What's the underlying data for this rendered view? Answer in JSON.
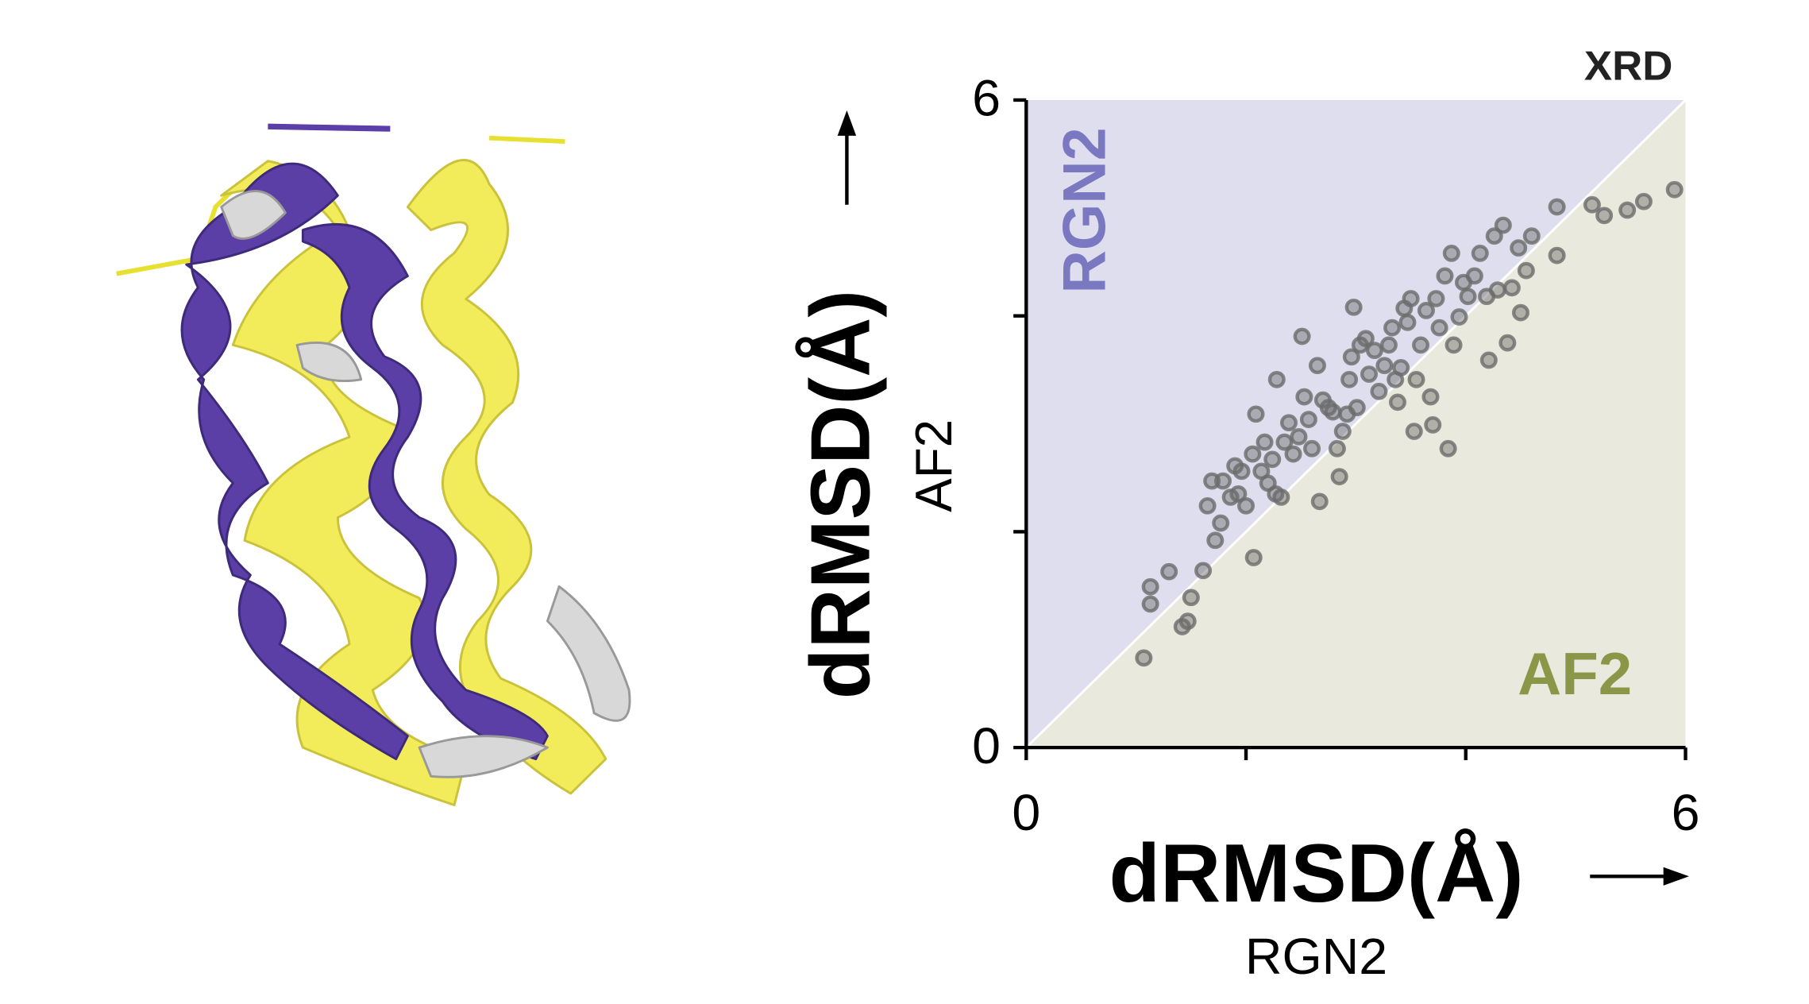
{
  "chart_data": {
    "type": "scatter",
    "title": "XRD",
    "xlabel": "dRMSD(Å)",
    "xlabel_sub": "RGN2",
    "ylabel": "dRMSD(Å)",
    "ylabel_sub": "AF2",
    "region_labels": {
      "upper": "RGN2",
      "lower": "AF2"
    },
    "xlim": [
      0,
      6
    ],
    "ylim": [
      0,
      6
    ],
    "xticks": [
      0,
      6
    ],
    "yticks": [
      0,
      6
    ],
    "xminor_ticks": [
      2,
      4
    ],
    "yminor_ticks": [
      2,
      4
    ],
    "color": "#6b6b6b",
    "x": [
      1.07,
      1.13,
      1.13,
      1.3,
      1.42,
      1.47,
      1.5,
      1.61,
      1.65,
      1.72,
      1.69,
      1.77,
      1.79,
      1.86,
      1.9,
      1.93,
      1.96,
      2.0,
      2.07,
      2.06,
      2.09,
      2.14,
      2.17,
      2.2,
      2.24,
      2.27,
      2.28,
      2.32,
      2.35,
      2.39,
      2.43,
      2.48,
      2.51,
      2.53,
      2.57,
      2.6,
      2.65,
      2.67,
      2.7,
      2.75,
      2.79,
      2.83,
      2.85,
      2.88,
      2.92,
      2.94,
      2.96,
      2.98,
      3.01,
      3.04,
      3.09,
      3.12,
      3.17,
      3.21,
      3.26,
      3.3,
      3.33,
      3.36,
      3.38,
      3.41,
      3.44,
      3.47,
      3.5,
      3.53,
      3.55,
      3.59,
      3.64,
      3.68,
      3.7,
      3.73,
      3.76,
      3.81,
      3.84,
      3.87,
      3.89,
      3.94,
      3.98,
      4.02,
      4.08,
      4.13,
      4.19,
      4.21,
      4.26,
      4.29,
      4.34,
      4.38,
      4.42,
      4.48,
      4.5,
      4.55,
      4.6,
      4.83,
      4.83,
      5.15,
      5.26,
      5.47,
      5.62,
      5.9
    ],
    "values": [
      0.83,
      1.49,
      1.33,
      1.63,
      1.12,
      1.17,
      1.39,
      1.64,
      2.24,
      1.92,
      2.47,
      2.08,
      2.47,
      2.32,
      2.61,
      2.35,
      2.56,
      2.24,
      1.76,
      2.72,
      3.09,
      2.56,
      2.83,
      2.45,
      2.67,
      2.35,
      3.41,
      2.32,
      2.83,
      3.01,
      2.72,
      2.88,
      3.81,
      3.25,
      3.04,
      2.77,
      3.54,
      2.28,
      3.22,
      3.15,
      3.11,
      2.77,
      2.51,
      2.93,
      3.09,
      3.41,
      3.62,
      4.08,
      3.15,
      3.73,
      3.79,
      3.46,
      3.68,
      3.3,
      3.54,
      3.73,
      3.89,
      3.41,
      3.2,
      3.52,
      4.07,
      3.94,
      4.16,
      2.93,
      3.41,
      3.73,
      4.05,
      3.25,
      2.99,
      4.16,
      3.89,
      4.37,
      2.77,
      4.58,
      3.73,
      3.99,
      4.31,
      4.18,
      4.37,
      4.58,
      4.18,
      3.59,
      4.74,
      4.24,
      4.84,
      3.75,
      4.26,
      4.63,
      4.03,
      4.42,
      4.74,
      4.56,
      5.01,
      5.03,
      4.93,
      4.98,
      5.06,
      5.17
    ]
  }
}
